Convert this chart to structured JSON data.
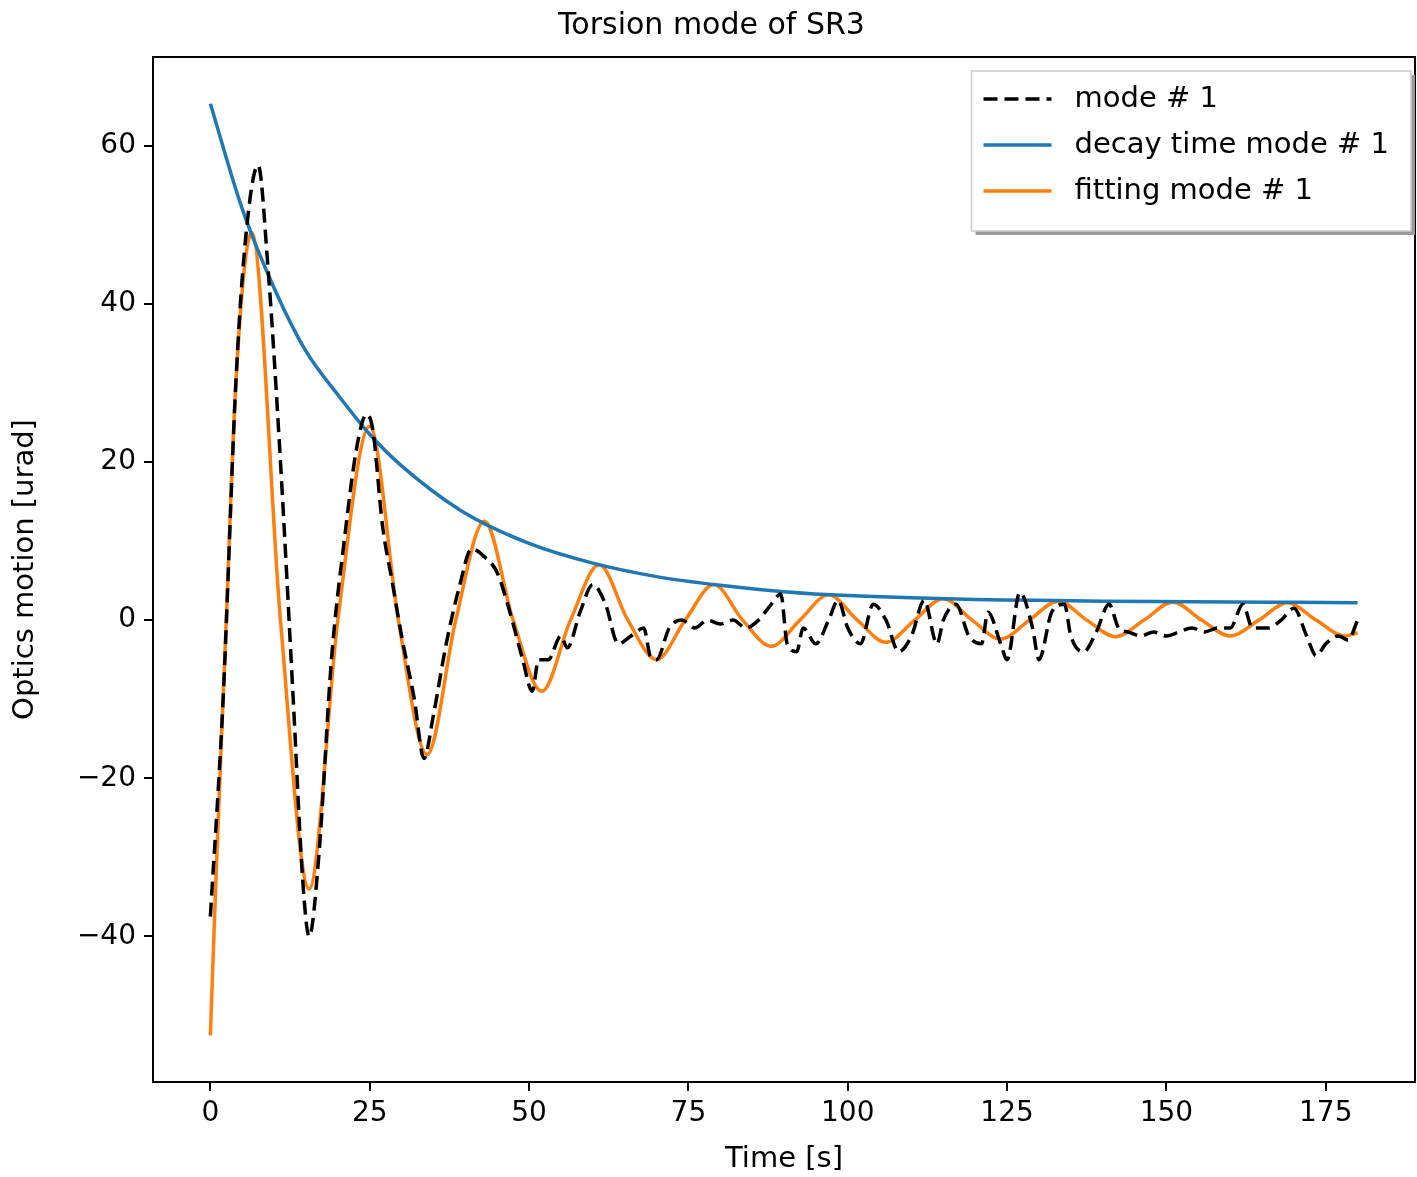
{
  "chart_data": {
    "type": "line",
    "title": "Torsion mode of SR3",
    "xlabel": "Time [s]",
    "ylabel": "Optics motion [urad]",
    "xlim": [
      -9,
      189
    ],
    "ylim": [
      -58.4,
      71.2
    ],
    "xticks": [
      0,
      25,
      50,
      75,
      100,
      125,
      150,
      175
    ],
    "yticks": [
      -40,
      -20,
      0,
      20,
      40,
      60
    ],
    "grid": false,
    "legend": "top right",
    "series": [
      {
        "name": "mode # 1",
        "color": "#000000",
        "line_style": "dashed",
        "x": [
          0,
          2,
          4,
          5.5,
          7.5,
          9,
          11,
          13,
          14.5,
          15.5,
          17,
          19,
          21,
          23,
          24.5,
          25.5,
          27,
          28.5,
          30,
          32,
          33.5,
          35,
          37,
          39,
          41,
          43,
          45,
          47,
          49,
          50.5,
          51.5,
          53,
          55,
          56,
          58,
          60,
          62,
          64,
          66,
          68,
          69,
          70,
          72,
          74,
          76,
          78,
          80,
          82,
          84,
          86,
          88,
          89.5,
          90.5,
          92,
          93,
          95,
          97,
          98.5,
          100,
          102,
          104,
          106,
          108,
          110,
          112,
          114,
          115,
          117,
          119,
          121,
          122,
          124,
          125,
          127,
          129,
          130,
          132,
          134,
          135,
          137,
          139,
          141,
          142.5,
          144,
          146,
          148,
          150,
          152,
          154,
          156,
          158,
          160,
          162,
          163.5,
          166,
          168,
          170,
          172,
          173.5,
          175,
          177,
          178.5,
          180
        ],
        "values": [
          -37.5,
          -10,
          30,
          48,
          57.5,
          45,
          20,
          -10,
          -33,
          -40,
          -30,
          -5,
          10,
          22,
          26,
          24,
          12,
          5,
          -2,
          -10,
          -17.5,
          -12,
          -3,
          4,
          9,
          8,
          6,
          1,
          -5,
          -9,
          -5,
          -5,
          -2,
          -3.5,
          1,
          4.5,
          2,
          -3,
          -2,
          -1,
          -4.5,
          -5,
          -1,
          0,
          -1,
          0,
          -0.5,
          0,
          -1,
          0,
          2,
          3.3,
          -3,
          -4,
          -1,
          -3,
          0,
          2.5,
          -1,
          -3,
          2,
          0,
          -4,
          -2,
          2.5,
          -3,
          0,
          2,
          -2,
          -3,
          1,
          -3,
          -5,
          3.5,
          -1,
          -5,
          1,
          2,
          -2,
          -4,
          -1.5,
          2,
          -1,
          -1.5,
          -2,
          -1.5,
          -2,
          -1.5,
          -1,
          -1.5,
          -1,
          -1,
          2,
          -1,
          -1,
          0,
          1.5,
          -2,
          -4.5,
          -3,
          -2,
          -2.5,
          0
        ]
      },
      {
        "name": "decay time mode # 1",
        "color": "#1f77b4",
        "line_style": "solid",
        "x": [
          0,
          5,
          10,
          15,
          20,
          25,
          30,
          40,
          50,
          60,
          70,
          80,
          90,
          100,
          120,
          140,
          160,
          180
        ],
        "values": [
          65.3,
          52,
          42,
          34,
          28.5,
          23.5,
          19.5,
          13.5,
          9.7,
          7.2,
          5.5,
          4.4,
          3.6,
          3.1,
          2.6,
          2.4,
          2.3,
          2.2
        ]
      },
      {
        "name": "fitting mode # 1",
        "color": "#ff7f0e",
        "line_style": "solid",
        "x": [
          0,
          1,
          2.5,
          4,
          6.5,
          11,
          15.5,
          20,
          25,
          29.5,
          34,
          38.5,
          43,
          47.5,
          52,
          56.5,
          61,
          65.5,
          70,
          74.5,
          79,
          83.5,
          88,
          92.5,
          97,
          101.5,
          106,
          110.5,
          115,
          119.5,
          124,
          128.5,
          133,
          137.5,
          142,
          146.5,
          151,
          155.5,
          160,
          164.5,
          169,
          173.5,
          178,
          180
        ],
        "values": [
          -52.5,
          -30,
          0,
          30,
          49,
          0,
          -34,
          0,
          24.5,
          0,
          -17,
          0,
          12.5,
          0,
          -9,
          0,
          7,
          0,
          -5,
          0,
          4.5,
          0,
          -3.3,
          0,
          3.2,
          0,
          -2.8,
          0,
          2.7,
          0,
          -2.4,
          0,
          2.4,
          0,
          -2.1,
          0,
          2.3,
          0,
          -2,
          0,
          2.2,
          0,
          -2,
          -1.6
        ]
      }
    ]
  }
}
